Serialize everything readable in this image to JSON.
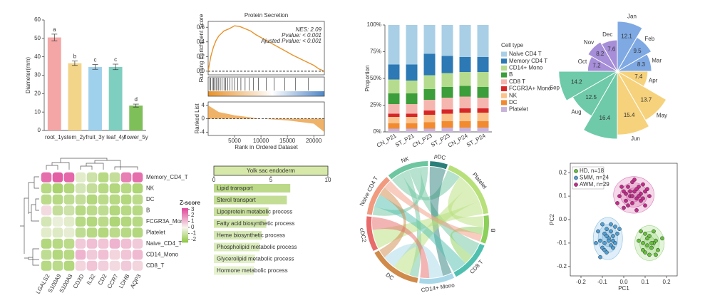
{
  "chart_data": [
    {
      "type": "bar",
      "ylabel": "Diameter(mm)",
      "categories": [
        "root_1y",
        "stem_2y",
        "fruit_3y",
        "leaf_4y",
        "flower_5y"
      ],
      "values": [
        50.5,
        36.5,
        34.5,
        34.5,
        13.5
      ],
      "errors": [
        1.8,
        1.2,
        1.3,
        1.5,
        0.8
      ],
      "annotations": [
        "a",
        "b",
        "c",
        "c",
        "d"
      ],
      "colors": [
        "#f4a6a6",
        "#f3d58a",
        "#9fd0ec",
        "#7fcfc0",
        "#7fbf5a"
      ],
      "ylim": [
        0,
        60
      ],
      "yticks": [
        0,
        10,
        20,
        30,
        40,
        50,
        60
      ]
    },
    {
      "type": "line",
      "title": "Protein Secretion",
      "ylabel": "Running Enrichment Score",
      "ylabel2": "Ranked List",
      "xlabel": "Rank in Ordered Dataset",
      "annotations": [
        "NES: 2.09",
        "Pvalue: < 0.001",
        "Ajusted Pvalue: < 0.001"
      ],
      "x": [
        0,
        500,
        1000,
        1500,
        2000,
        3000,
        4000,
        5000,
        6000,
        7000,
        8000,
        9000,
        10000,
        12000,
        14000,
        16000,
        18000,
        20000,
        21000,
        22000
      ],
      "values": [
        0,
        0.2,
        0.33,
        0.42,
        0.48,
        0.55,
        0.58,
        0.62,
        0.61,
        0.58,
        0.55,
        0.5,
        0.46,
        0.38,
        0.3,
        0.22,
        0.15,
        0.08,
        0.03,
        0
      ],
      "color": "#e8922a",
      "hits": [
        300,
        500,
        800,
        1000,
        1200,
        1500,
        1700,
        2000,
        2300,
        2600,
        3000,
        3300,
        3700,
        4100,
        4500,
        5000,
        5600,
        6200,
        7000,
        7800,
        8600,
        9500,
        11000,
        12500,
        14500,
        16500,
        19000
      ],
      "ranked_x": [
        0,
        2000,
        5000,
        10000,
        15000,
        20000,
        22000
      ],
      "ranked_values": [
        4,
        2,
        1,
        0,
        -0.5,
        -1.5,
        -4
      ],
      "xlim": [
        0,
        22000
      ],
      "xticks": [
        5000,
        10000,
        15000,
        20000
      ],
      "ylim": [
        -0.05,
        0.68
      ],
      "yticks": [
        {
          "value": 0,
          "label": "0.0"
        },
        0.2,
        0.4,
        0.6
      ],
      "y2lim": [
        -5,
        5
      ],
      "y2ticks": [
        -4,
        0,
        4
      ]
    },
    {
      "type": "stacked_bar",
      "ylabel": "Proportion",
      "legend_title": "Cell type",
      "categories": [
        "CN_P21",
        "ST_P21",
        "CN_P23",
        "ST_P23",
        "CN_P24",
        "ST_P24"
      ],
      "series": [
        {
          "name": "Naive CD4 T",
          "color": "#a9cfe6",
          "values": [
            37,
            37,
            27,
            29,
            30,
            30
          ]
        },
        {
          "name": "Memory CD4 T",
          "color": "#2c79b5",
          "values": [
            14,
            15,
            20,
            16,
            14,
            14
          ]
        },
        {
          "name": "CD14+ Mono",
          "color": "#b5dc8e",
          "values": [
            13,
            12,
            13,
            13,
            13,
            14
          ]
        },
        {
          "name": "B",
          "color": "#3b9e3b",
          "values": [
            10,
            10,
            10,
            10,
            10,
            10
          ]
        },
        {
          "name": "CD8 T",
          "color": "#f6b6b0",
          "values": [
            9,
            9,
            10,
            11,
            11,
            10
          ]
        },
        {
          "name": "FCGR3A+ Mono",
          "color": "#d62728",
          "values": [
            3,
            3,
            4,
            4,
            4,
            4
          ]
        },
        {
          "name": "NK",
          "color": "#fbc28b",
          "values": [
            6,
            6,
            7,
            7,
            8,
            8
          ]
        },
        {
          "name": "DC",
          "color": "#f28b30",
          "values": [
            5,
            5,
            6,
            6,
            6,
            6
          ]
        },
        {
          "name": "Platelet",
          "color": "#c9b4d9",
          "values": [
            3,
            3,
            3,
            4,
            4,
            4
          ]
        }
      ],
      "ylim": [
        0,
        100
      ],
      "yticks": [
        {
          "value": 0,
          "label": "0%"
        },
        {
          "value": 25,
          "label": "25%"
        },
        {
          "value": 50,
          "label": "50%"
        },
        {
          "value": 75,
          "label": "75%"
        },
        {
          "value": 100,
          "label": "100%"
        }
      ]
    },
    {
      "type": "polar_area",
      "categories": [
        "Jan",
        "Feb",
        "Mar",
        "Apr",
        "May",
        "Jun",
        null,
        "Aug",
        "Sep",
        "Oct",
        "Nov",
        "Dec"
      ],
      "values": [
        12.1,
        9.5,
        8.3,
        7.4,
        13.7,
        15.4,
        16.4,
        12.5,
        14.2,
        7.2,
        8.2,
        7.6
      ],
      "colors": [
        "#7fa9e3",
        "#7fa9e3",
        "#7fa9e3",
        "#f6d27c",
        "#f6d27c",
        "#f6d27c",
        "#6ecaa9",
        "#6ecaa9",
        "#6ecaa9",
        "#a68ed8",
        "#a68ed8",
        "#a68ed8"
      ]
    },
    {
      "type": "heatmap",
      "legend_title": "Z-score",
      "rows": [
        "Memory_CD4_T",
        "NK",
        "DC",
        "B",
        "FCGR3A_Mono",
        "Platelet",
        "Naive_CD4_T",
        "CD14_Mono",
        "CD8_T"
      ],
      "columns": [
        "LGALS2",
        "S100A9",
        "S100A8",
        "CD3D",
        "IL32",
        "CD2",
        "CCR7",
        "LDHB",
        "AQP3"
      ],
      "values": [
        [
          2.5,
          2.8,
          2.6,
          -0.5,
          -1,
          -1.5,
          -1.2,
          2.2,
          2.5
        ],
        [
          -1.5,
          -1.8,
          -1.6,
          -0.8,
          -1.2,
          -1.5,
          -1.6,
          -1.5,
          -1.7
        ],
        [
          -1.4,
          -1.5,
          -1.3,
          -1.2,
          -1.6,
          -1.4,
          -1.5,
          -1.6,
          -1.4
        ],
        [
          0.5,
          -1.2,
          -1.0,
          -1.5,
          -1.4,
          -1.3,
          -1.6,
          -1.5,
          -1.5
        ],
        [
          -0.8,
          -0.3,
          -0.5,
          -1.5,
          -1.6,
          -1.4,
          -1.7,
          -1.6,
          -1.5
        ],
        [
          -0.5,
          -0.6,
          -0.4,
          -1.3,
          -1.5,
          -1.6,
          -1.4,
          -1.5,
          -1.6
        ],
        [
          -1.6,
          -1.5,
          -1.4,
          0.8,
          1.0,
          0.9,
          1.2,
          1.0,
          0.8
        ],
        [
          -1.3,
          -1.6,
          -1.5,
          1.2,
          0.8,
          1.0,
          0.6,
          0.9,
          1.1
        ],
        [
          -1.5,
          -1.4,
          -1.6,
          0.6,
          0.9,
          0.7,
          0.5,
          0.8,
          0.6
        ]
      ],
      "low_color": "#8cc63e",
      "mid_color": "#f7f5ee",
      "high_color": "#e0489a",
      "zlim": [
        -2.5,
        3.2
      ],
      "zticks": [
        -2,
        -1,
        0,
        1,
        2,
        3
      ]
    },
    {
      "type": "barh",
      "title": "Yolk sac endoderm",
      "categories": [
        "Lipid transport",
        "Sterol transport",
        "Lipoprotein metabolic process",
        "Fatty acid biosynthetic process",
        "Heme biosynthetic process",
        "Phospholipid metabolic process",
        "Glycerolipid metabolic process",
        "Hormone metabolic process"
      ],
      "values": [
        6.7,
        6.4,
        4.8,
        4.6,
        4.2,
        4.0,
        3.6,
        3.5
      ],
      "colors": [
        "#bcd98a",
        "#c3dd94",
        "#cae19f",
        "#d0e5a9",
        "#d6e9b3",
        "#dbecbc",
        "#e0efc5",
        "#e5f2cd"
      ],
      "xlim": [
        0,
        10
      ],
      "xticks": [
        0,
        5,
        10
      ]
    },
    {
      "type": "chord",
      "sectors": [
        "NK",
        "pDC",
        "Platelet",
        "B",
        "CD8 T",
        "CD14+ Mono",
        "DC",
        "cDC2",
        "Naive CD4 T"
      ],
      "values": [
        12,
        5,
        18,
        8,
        12,
        10,
        15,
        10,
        12
      ],
      "colors": [
        "#6dc6a0",
        "#2b7f7a",
        "#b8e07a",
        "#8ccf5a",
        "#4fc0b0",
        "#a8d8e8",
        "#d08a4a",
        "#e86a6a",
        "#f29a80"
      ],
      "links": [
        {
          "source": "NK",
          "target": "Platelet",
          "value": 3
        },
        {
          "source": "NK",
          "target": "DC",
          "value": 2
        },
        {
          "source": "NK",
          "target": "CD8 T",
          "value": 3
        },
        {
          "source": "NK",
          "target": "Naive CD4 T",
          "value": 2
        },
        {
          "source": "pDC",
          "target": "CD14+ Mono",
          "value": 2
        },
        {
          "source": "Platelet",
          "target": "B",
          "value": 3
        },
        {
          "source": "Platelet",
          "target": "DC",
          "value": 4
        },
        {
          "source": "Platelet",
          "target": "cDC2",
          "value": 3
        },
        {
          "source": "B",
          "target": "CD8 T",
          "value": 2
        },
        {
          "source": "CD8 T",
          "target": "Naive CD4 T",
          "value": 3
        },
        {
          "source": "CD14+ Mono",
          "target": "DC",
          "value": 3
        },
        {
          "source": "DC",
          "target": "Naive CD4 T",
          "value": 2
        },
        {
          "source": "cDC2",
          "target": "CD14+ Mono",
          "value": 2
        },
        {
          "source": "Naive CD4 T",
          "target": "B",
          "value": 2
        }
      ]
    },
    {
      "type": "scatter",
      "xlabel": "PC1",
      "ylabel": "PC2",
      "series": [
        {
          "name": "HD, n=18",
          "color": "#66c23a",
          "x": [
            0.08,
            0.1,
            0.12,
            0.14,
            0.15,
            0.09,
            0.11,
            0.13,
            0.16,
            0.07,
            0.1,
            0.12,
            0.14,
            0.18,
            0.11,
            0.09,
            0.13,
            0.15
          ],
          "y": [
            -0.05,
            -0.06,
            -0.07,
            -0.05,
            -0.09,
            -0.1,
            -0.11,
            -0.12,
            -0.13,
            -0.09,
            -0.14,
            -0.15,
            -0.1,
            -0.08,
            -0.08,
            -0.13,
            -0.1,
            -0.15
          ]
        },
        {
          "name": "SMM, n=24",
          "color": "#4f9fd6",
          "x": [
            -0.12,
            -0.1,
            -0.09,
            -0.08,
            -0.07,
            -0.06,
            -0.05,
            -0.04,
            -0.11,
            -0.09,
            -0.08,
            -0.06,
            -0.05,
            -0.03,
            -0.1,
            -0.07,
            -0.04,
            -0.02,
            -0.09,
            -0.06,
            -0.13,
            -0.08,
            -0.05,
            -0.11
          ],
          "y": [
            -0.05,
            -0.02,
            -0.06,
            -0.04,
            -0.08,
            -0.05,
            -0.07,
            -0.03,
            -0.09,
            -0.1,
            -0.07,
            -0.11,
            -0.09,
            -0.06,
            -0.12,
            -0.09,
            -0.1,
            -0.04,
            -0.13,
            -0.02,
            -0.1,
            -0.14,
            -0.12,
            -0.16
          ]
        },
        {
          "name": "AWM, n=29",
          "color": "#c8288c",
          "x": [
            -0.02,
            0.0,
            0.01,
            0.02,
            0.03,
            0.04,
            0.05,
            0.06,
            0.07,
            0.08,
            0.09,
            0.1,
            0.11,
            0.12,
            0.0,
            0.02,
            0.04,
            0.06,
            0.08,
            0.1,
            -0.01,
            0.03,
            0.05,
            0.07,
            0.09,
            0.01,
            0.04,
            0.06,
            -0.03
          ],
          "y": [
            0.1,
            0.12,
            0.08,
            0.14,
            0.1,
            0.16,
            0.12,
            0.09,
            0.14,
            0.11,
            0.15,
            0.12,
            0.13,
            0.1,
            0.05,
            0.06,
            0.07,
            0.04,
            0.08,
            0.06,
            0.14,
            0.12,
            0.17,
            0.1,
            0.09,
            0.11,
            0.1,
            0.13,
            0.07
          ]
        }
      ],
      "xlim": [
        -0.25,
        0.25
      ],
      "xticks": [
        -0.2,
        -0.1,
        {
          "value": 0,
          "label": "0.0"
        },
        0.1,
        0.2
      ],
      "ylim": [
        -0.24,
        0.24
      ],
      "yticks": [
        -0.2,
        -0.1,
        {
          "value": 0,
          "label": "0.0"
        },
        0.1,
        0.2
      ]
    }
  ]
}
